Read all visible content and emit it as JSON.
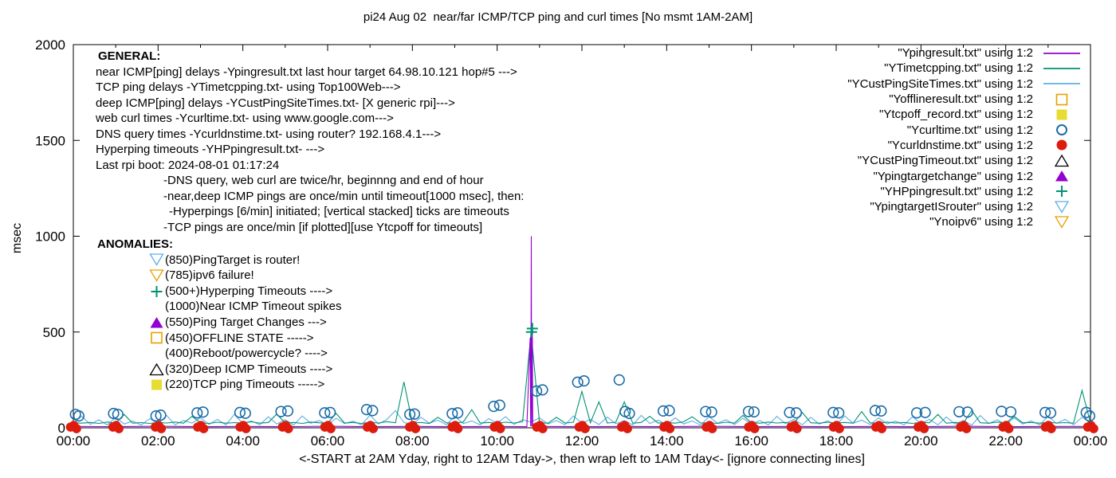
{
  "title": "pi24 Aug 02  near/far ICMP/TCP ping and curl times [No msmt 1AM-2AM]",
  "xlabel": "<-START at 2AM Yday, right to 12AM Tday->, then wrap left to 1AM Tday<- [ignore connecting lines]",
  "ylabel": "msec",
  "general": {
    "heading": "GENERAL:",
    "lines": [
      {
        "text": "near ICMP[ping] delays -Ypingresult.txt last hour target 64.98.10.121 hop#5 --->",
        "indent": 0
      },
      {
        "text": "TCP ping delays -YTimetcpping.txt- using Top100Web--->",
        "indent": 0
      },
      {
        "text": "deep ICMP[ping] delays -YCustPingSiteTimes.txt- [X generic rpi]--->",
        "indent": 0
      },
      {
        "text": "web curl times -Ycurltime.txt- using www.google.com--->",
        "indent": 0
      },
      {
        "text": "DNS query times -Ycurldnstime.txt- using router? 192.168.4.1--->",
        "indent": 0
      },
      {
        "text": "Hyperping timeouts -YHPpingresult.txt- --->",
        "indent": 0
      },
      {
        "text": "Last rpi boot: 2024-08-01 01:17:24",
        "indent": 0
      },
      {
        "text": "-DNS query, web curl are twice/hr, beginnng and end of hour",
        "indent": 1
      },
      {
        "text": "-near,deep ICMP pings are once/min until timeout[1000 msec], then:",
        "indent": 1
      },
      {
        "text": "-Hyperpings [6/min] initiated; [vertical stacked] ticks are timeouts",
        "indent": 2
      },
      {
        "text": "-TCP pings are once/min [if plotted][use Ytcpoff for timeouts]",
        "indent": 1
      }
    ]
  },
  "anomalies": {
    "heading": "ANOMALIES:",
    "items": [
      {
        "marker": "triangle-down-open",
        "color": "#5CB0E6",
        "text": "(850)PingTarget is router!"
      },
      {
        "marker": "triangle-down-open",
        "color": "#E8A000",
        "text": "(785)ipv6 failure!"
      },
      {
        "marker": "plus",
        "color": "#009272",
        "text": "(500+)Hyperping Timeouts ---->"
      },
      {
        "marker": "none",
        "color": "",
        "text": "(1000)Near ICMP Timeout spikes"
      },
      {
        "marker": "triangle-up-filled",
        "color": "#9400D3",
        "text": "(550)Ping Target Changes --->"
      },
      {
        "marker": "square-open",
        "color": "#E8A000",
        "text": "(450)OFFLINE STATE ----->"
      },
      {
        "marker": "none",
        "color": "",
        "text": "(400)Reboot/powercycle? ---->"
      },
      {
        "marker": "triangle-up-open",
        "color": "#000000",
        "text": "(320)Deep ICMP Timeouts ---->"
      },
      {
        "marker": "square-filled",
        "color": "#E6DC32",
        "text": "(220)TCP ping Timeouts ----->"
      }
    ]
  },
  "legend": [
    {
      "label": "\"Ypingresult.txt\" using 1:2",
      "marker": "line",
      "color": "#9400D3"
    },
    {
      "label": "\"YTimetcpping.txt\" using 1:2",
      "marker": "line",
      "color": "#009272"
    },
    {
      "label": "\"YCustPingSiteTimes.txt\" using 1:2",
      "marker": "line",
      "color": "#5CB0E6"
    },
    {
      "label": "\"Yofflineresult.txt\" using 1:2",
      "marker": "square-open",
      "color": "#E8A000"
    },
    {
      "label": "\"Ytcpoff_record.txt\" using 1:2",
      "marker": "square-filled",
      "color": "#E6DC32"
    },
    {
      "label": "\"Ycurltime.txt\" using 1:2",
      "marker": "circle-open",
      "color": "#1B6CA8"
    },
    {
      "label": "\"Ycurldnstime.txt\" using 1:2",
      "marker": "circle-filled",
      "color": "#DD1C0E"
    },
    {
      "label": "\"YCustPingTimeout.txt\" using 1:2",
      "marker": "triangle-up-open",
      "color": "#000000"
    },
    {
      "label": "\"Ypingtargetchange\" using 1:2",
      "marker": "triangle-up-filled",
      "color": "#9400D3"
    },
    {
      "label": "\"YHPpingresult.txt\" using 1:2",
      "marker": "plus",
      "color": "#009272"
    },
    {
      "label": "\"YpingtargetISrouter\" using 1:2",
      "marker": "triangle-down-open",
      "color": "#5CB0E6"
    },
    {
      "label": "\"Ynoipv6\" using 1:2",
      "marker": "triangle-down-open",
      "color": "#E8A000"
    }
  ],
  "chart_data": {
    "type": "line",
    "title": "pi24 Aug 02  near/far ICMP/TCP ping and curl times [No msmt 1AM-2AM]",
    "x_axis": {
      "range_hours": [
        0,
        24
      ],
      "ticks": [
        {
          "h": 0,
          "label": "00:00"
        },
        {
          "h": 2,
          "label": "02:00"
        },
        {
          "h": 4,
          "label": "04:00"
        },
        {
          "h": 6,
          "label": "06:00"
        },
        {
          "h": 8,
          "label": "08:00"
        },
        {
          "h": 10,
          "label": "10:00"
        },
        {
          "h": 12,
          "label": "12:00"
        },
        {
          "h": 14,
          "label": "14:00"
        },
        {
          "h": 16,
          "label": "16:00"
        },
        {
          "h": 18,
          "label": "18:00"
        },
        {
          "h": 20,
          "label": "20:00"
        },
        {
          "h": 22,
          "label": "22:00"
        },
        {
          "h": 24,
          "label": "00:00"
        }
      ]
    },
    "y_axis": {
      "range": [
        0,
        2000
      ],
      "label": "msec",
      "ticks": [
        {
          "v": 0,
          "label": "0"
        },
        {
          "v": 500,
          "label": "500"
        },
        {
          "v": 1000,
          "label": "1000"
        },
        {
          "v": 1500,
          "label": "1500"
        },
        {
          "v": 2000,
          "label": "2000"
        }
      ]
    },
    "series": [
      {
        "id": "deep_icmp",
        "label": "YCustPingSiteTimes.txt",
        "type": "line",
        "color": "#5CB0E6",
        "x0": 0,
        "dx": 0.2,
        "values": [
          25,
          60,
          18,
          42,
          15,
          55,
          20,
          35,
          14,
          48,
          22,
          65,
          16,
          38,
          25,
          52,
          18,
          44,
          15,
          70,
          22,
          36,
          16,
          58,
          20,
          42,
          15,
          62,
          24,
          38,
          17,
          50,
          22,
          35,
          15,
          66,
          20,
          44,
          90,
          28,
          18,
          55,
          24,
          40,
          16,
          60,
          22,
          36,
          15,
          48,
          25,
          58,
          18,
          42,
          30,
          52,
          20,
          38,
          16,
          62,
          24,
          44,
          17,
          56,
          21,
          38,
          15,
          65,
          23,
          40,
          16,
          52,
          20,
          36,
          14,
          58,
          24,
          42,
          17,
          50,
          20,
          38,
          15,
          60,
          22,
          45,
          16,
          55,
          20,
          36,
          15,
          62,
          24,
          40,
          17,
          52,
          20,
          35,
          15,
          58,
          22,
          44,
          16,
          56,
          20,
          38,
          14,
          64,
          22,
          42,
          17,
          52,
          20,
          36,
          15,
          60,
          23,
          44,
          16,
          55,
          25
        ]
      },
      {
        "id": "tcp_ping",
        "label": "YTimetcpping.txt",
        "type": "line",
        "color": "#009272",
        "x0": 0,
        "dx": 0.2,
        "values": [
          26,
          24,
          28,
          23,
          30,
          25,
          70,
          24,
          27,
          23,
          28,
          25,
          30,
          24,
          60,
          26,
          23,
          29,
          24,
          27,
          25,
          31,
          24,
          28,
          72,
          25,
          28,
          23,
          30,
          26,
          24,
          75,
          25,
          28,
          23,
          29,
          25,
          32,
          26,
          240,
          25,
          28,
          23,
          55,
          26,
          24,
          30,
          95,
          25,
          28,
          24,
          29,
          25,
          32,
          500,
          26,
          24,
          55,
          25,
          29,
          190,
          26,
          135,
          25,
          29,
          135,
          24,
          28,
          60,
          25,
          28,
          24,
          31,
          58,
          25,
          27,
          23,
          29,
          25,
          65,
          26,
          24,
          30,
          25,
          28,
          23,
          80,
          26,
          24,
          29,
          25,
          28,
          24,
          85,
          26,
          24,
          30,
          25,
          28,
          23,
          29,
          26,
          70,
          24,
          28,
          25,
          90,
          26,
          24,
          30,
          25,
          60,
          26,
          28,
          24,
          29,
          25,
          27,
          24,
          195,
          26
        ]
      },
      {
        "id": "near_icmp",
        "label": "Ypingresult.txt",
        "type": "line",
        "color": "#9400D3",
        "points": [
          [
            0,
            7
          ],
          [
            1,
            6
          ],
          [
            2,
            8
          ],
          [
            3,
            6
          ],
          [
            4,
            7
          ],
          [
            5,
            6
          ],
          [
            6,
            8
          ],
          [
            7,
            6
          ],
          [
            8,
            7
          ],
          [
            9,
            6
          ],
          [
            10,
            7
          ],
          [
            10.7,
            6
          ],
          [
            10.78,
            470
          ],
          [
            10.79,
            8
          ],
          [
            10.8,
            500
          ],
          [
            10.805,
            1000
          ],
          [
            10.81,
            480
          ],
          [
            10.815,
            8
          ],
          [
            10.83,
            490
          ],
          [
            10.84,
            8
          ],
          [
            11,
            7
          ],
          [
            12,
            6
          ],
          [
            13,
            7
          ],
          [
            14,
            6
          ],
          [
            15,
            8
          ],
          [
            16,
            6
          ],
          [
            17,
            7
          ],
          [
            18,
            6
          ],
          [
            19,
            7
          ],
          [
            20,
            6
          ],
          [
            21,
            8
          ],
          [
            22,
            6
          ],
          [
            23,
            7
          ],
          [
            24,
            7
          ]
        ]
      },
      {
        "id": "web_curl",
        "label": "Ycurltime.txt",
        "type": "circle-open",
        "color": "#1B6CA8",
        "points": [
          [
            0.05,
            70
          ],
          [
            0.13,
            62
          ],
          [
            0.95,
            75
          ],
          [
            1.05,
            70
          ],
          [
            1.95,
            62
          ],
          [
            2.06,
            66
          ],
          [
            2.92,
            78
          ],
          [
            3.06,
            82
          ],
          [
            3.93,
            80
          ],
          [
            4.06,
            76
          ],
          [
            4.9,
            85
          ],
          [
            5.06,
            88
          ],
          [
            5.93,
            78
          ],
          [
            6.06,
            80
          ],
          [
            6.92,
            95
          ],
          [
            7.06,
            90
          ],
          [
            7.94,
            70
          ],
          [
            8.05,
            72
          ],
          [
            8.94,
            74
          ],
          [
            9.07,
            78
          ],
          [
            9.92,
            112
          ],
          [
            10.06,
            118
          ],
          [
            10.93,
            192
          ],
          [
            11.07,
            198
          ],
          [
            11.9,
            238
          ],
          [
            12.05,
            245
          ],
          [
            12.88,
            250
          ],
          [
            13.02,
            85
          ],
          [
            13.12,
            75
          ],
          [
            13.92,
            88
          ],
          [
            14.06,
            90
          ],
          [
            14.92,
            85
          ],
          [
            15.06,
            82
          ],
          [
            15.93,
            85
          ],
          [
            16.06,
            83
          ],
          [
            16.9,
            80
          ],
          [
            17.06,
            78
          ],
          [
            17.93,
            80
          ],
          [
            18.06,
            78
          ],
          [
            18.92,
            90
          ],
          [
            19.06,
            88
          ],
          [
            19.9,
            78
          ],
          [
            20.1,
            80
          ],
          [
            20.9,
            84
          ],
          [
            21.1,
            82
          ],
          [
            21.9,
            86
          ],
          [
            22.12,
            83
          ],
          [
            22.93,
            80
          ],
          [
            23.06,
            78
          ],
          [
            23.9,
            80
          ],
          [
            23.98,
            62
          ]
        ]
      },
      {
        "id": "dns_query",
        "label": "Ycurldnstime.txt",
        "type": "cluster",
        "color": "#DD1C0E",
        "hours": [
          0,
          1,
          2,
          3,
          4,
          5,
          6,
          7,
          8,
          9,
          10,
          11,
          12,
          13,
          14,
          15,
          16,
          17,
          18,
          19,
          20,
          21,
          22,
          23,
          24
        ],
        "value": 4
      },
      {
        "id": "hyperping",
        "label": "YHPpingresult.txt",
        "type": "plus",
        "color": "#009272",
        "points": [
          [
            10.81,
            500
          ],
          [
            10.83,
            518
          ]
        ]
      }
    ]
  }
}
